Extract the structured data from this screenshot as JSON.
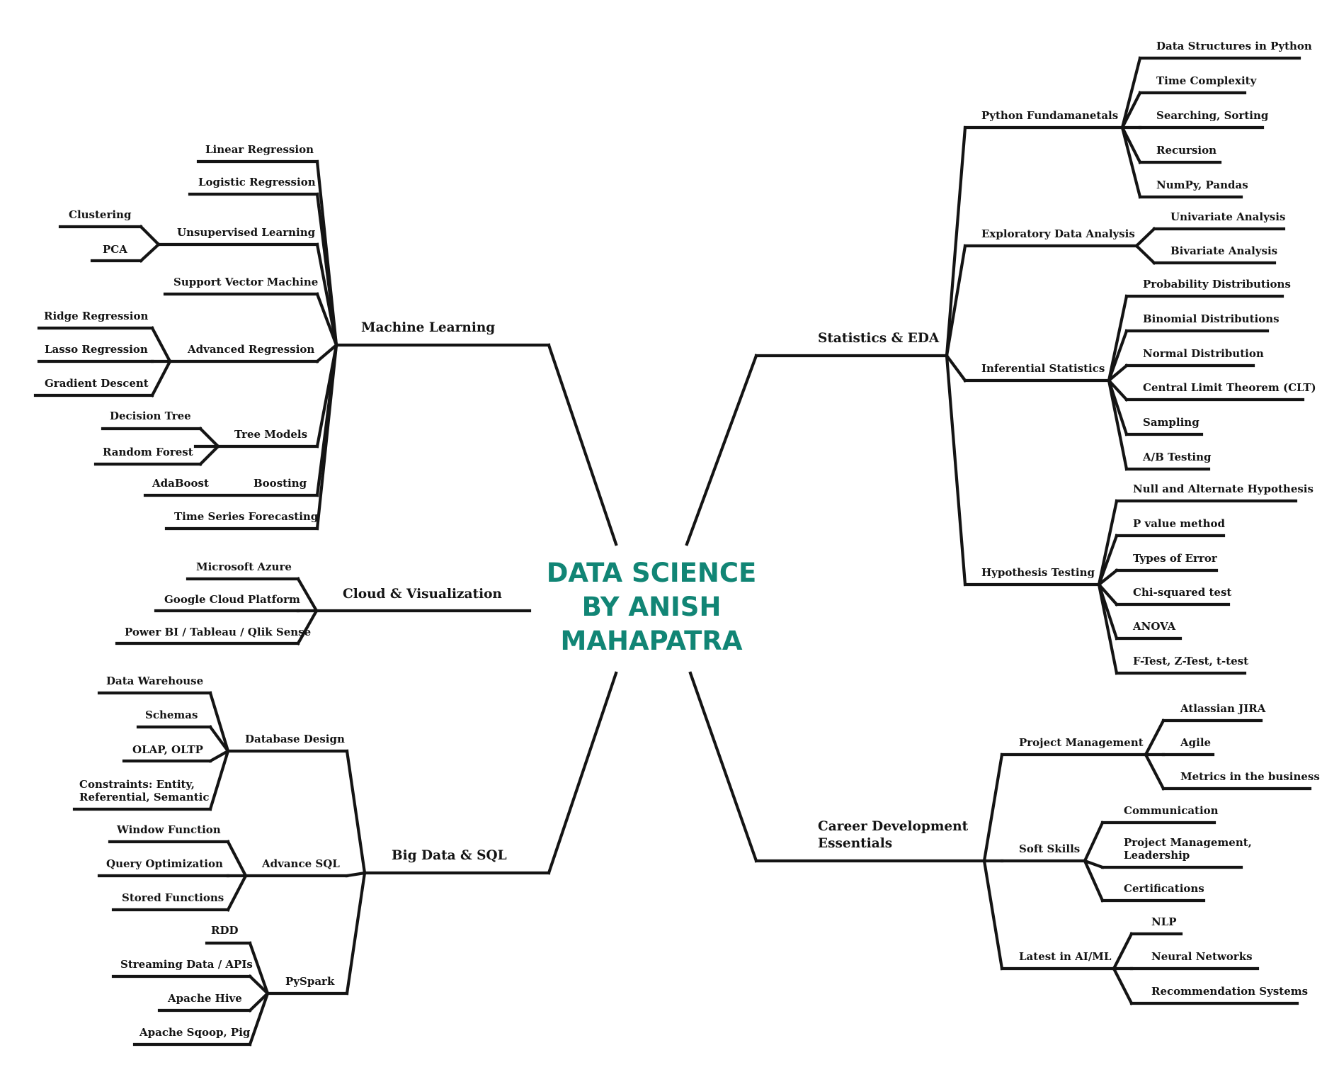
{
  "center": {
    "lines": [
      "DATA SCIENCE",
      "BY ANISH",
      "MAHAPATRA"
    ],
    "color": "#118575"
  },
  "line_color": "#141414",
  "branches": {
    "machine_learning": {
      "label": "Machine Learning",
      "topics": {
        "linear_regression": "Linear Regression",
        "logistic_regression": "Logistic Regression",
        "unsupervised_learning": {
          "label": "Unsupervised Learning",
          "items": [
            "Clustering",
            "PCA"
          ]
        },
        "svm": "Support Vector Machine",
        "advanced_regression": {
          "label": "Advanced Regression",
          "items": [
            "Ridge Regression",
            "Lasso Regression",
            "Gradient Descent"
          ]
        },
        "tree_models": {
          "label": "Tree Models",
          "items": [
            "Decision Tree",
            "Random Forest"
          ]
        },
        "boosting": {
          "label": "Boosting",
          "items": [
            "AdaBoost"
          ]
        },
        "time_series": "Time Series Forecasting"
      }
    },
    "cloud_visualization": {
      "label": "Cloud & Visualization",
      "items": [
        "Microsoft Azure",
        "Google Cloud Platform",
        "Power BI / Tableau / Qlik Sense"
      ]
    },
    "big_data_sql": {
      "label": "Big Data & SQL",
      "topics": {
        "database_design": {
          "label": "Database Design",
          "items": [
            "Data Warehouse",
            "Schemas",
            "OLAP, OLTP"
          ],
          "constraints": [
            "Constraints: Entity,",
            "Referential, Semantic"
          ]
        },
        "advance_sql": {
          "label": "Advance SQL",
          "items": [
            "Window Function",
            "Query Optimization",
            "Stored Functions"
          ]
        },
        "pyspark": {
          "label": "PySpark",
          "items": [
            "RDD",
            "Streaming Data / APIs",
            "Apache Hive",
            "Apache Sqoop, Pig"
          ]
        }
      }
    },
    "statistics_eda": {
      "label": "Statistics & EDA",
      "topics": {
        "python": {
          "label": "Python Fundamanetals",
          "items": [
            "Data Structures in Python",
            "Time Complexity",
            "Searching, Sorting",
            "Recursion",
            "NumPy, Pandas"
          ]
        },
        "eda": {
          "label": "Exploratory Data Analysis",
          "items": [
            "Univariate Analysis",
            "Bivariate Analysis"
          ]
        },
        "inferential": {
          "label": "Inferential Statistics",
          "items": [
            "Probability Distributions",
            "Binomial Distributions",
            "Normal Distribution",
            "Central Limit Theorem (CLT)",
            "Sampling",
            "A/B Testing"
          ]
        },
        "hypothesis": {
          "label": "Hypothesis Testing",
          "items": [
            "Null and Alternate Hypothesis",
            "P value method",
            "Types of Error",
            "Chi-squared test",
            "ANOVA",
            "F-Test, Z-Test, t-test"
          ]
        }
      }
    },
    "career": {
      "label_lines": [
        "Career Development",
        "Essentials"
      ],
      "topics": {
        "project_management": {
          "label": "Project Management",
          "items": [
            "Atlassian JIRA",
            "Agile",
            "Metrics in the business"
          ]
        },
        "soft_skills": {
          "label": "Soft Skills",
          "items": [
            "Communication",
            "Certifications"
          ],
          "multi": [
            "Project Management,",
            "Leadership"
          ]
        },
        "latest_ai_ml": {
          "label": "Latest in AI/ML",
          "items": [
            "NLP",
            "Neural Networks",
            "Recommendation Systems"
          ]
        }
      }
    }
  }
}
